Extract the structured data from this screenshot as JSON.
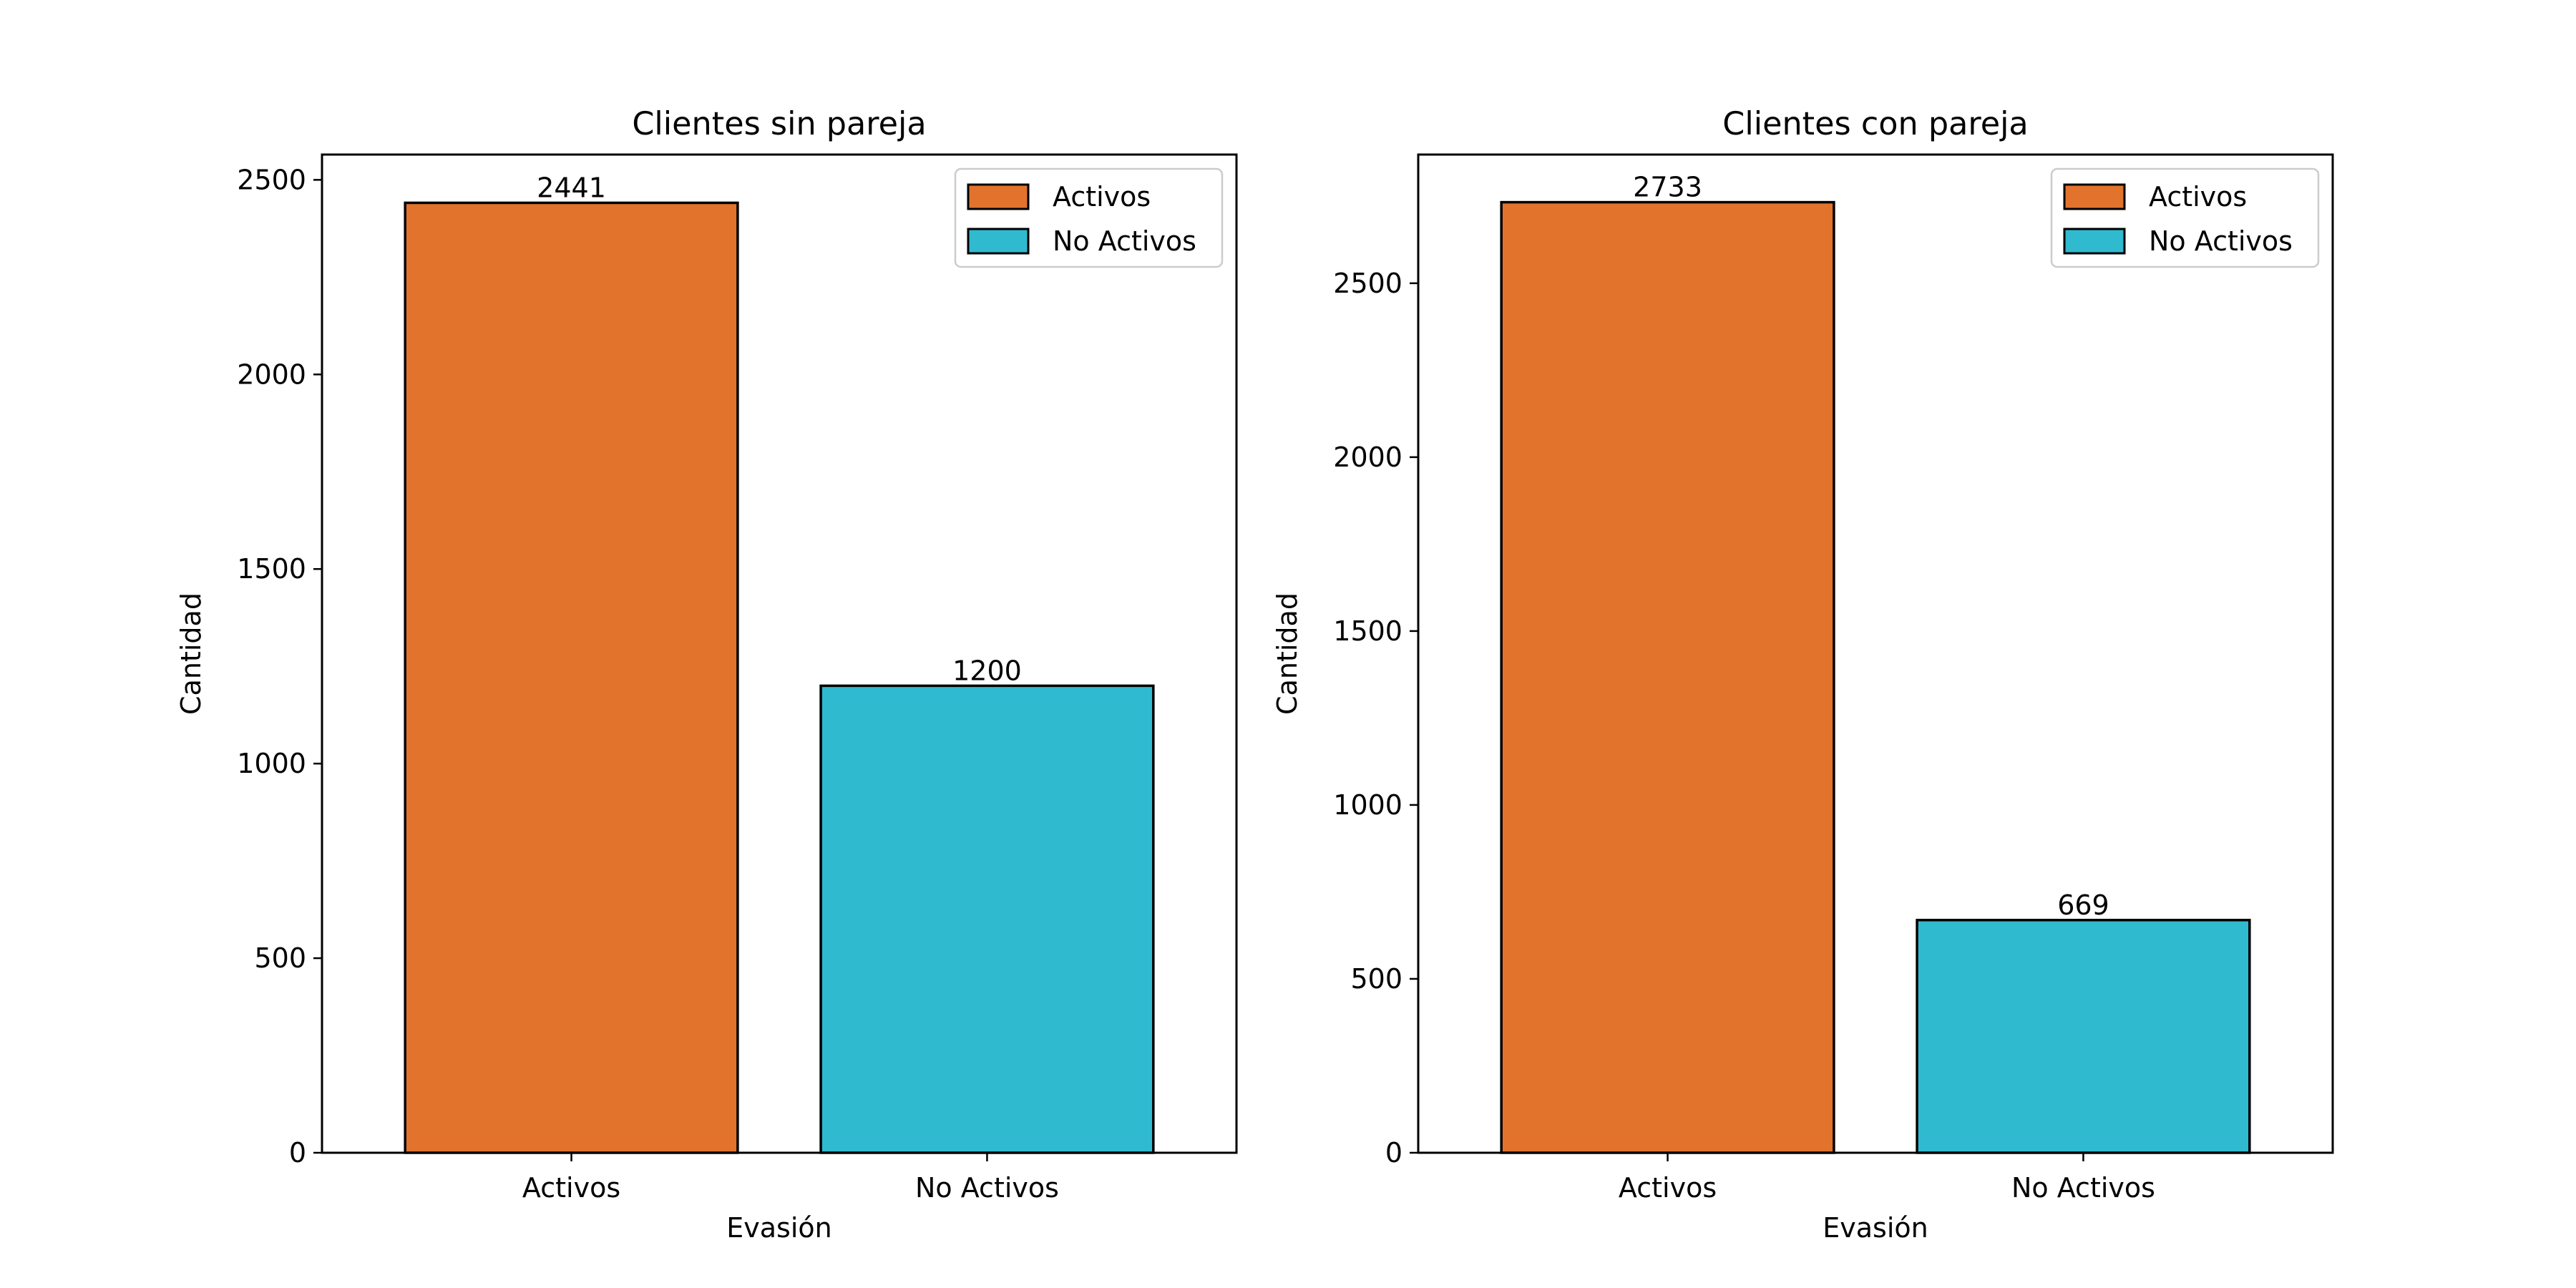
{
  "chart_data": [
    {
      "type": "bar",
      "title": "Clientes sin pareja",
      "xlabel": "Evasión",
      "ylabel": "Cantidad",
      "categories": [
        "Activos",
        "No Activos"
      ],
      "values": [
        2441,
        1200
      ],
      "data_labels": [
        "2441",
        "1200"
      ],
      "colors": [
        "#e1732d",
        "#2fbad0"
      ],
      "edge_color": "#000000",
      "ylim": [
        0,
        2565
      ],
      "yticks": [
        0,
        500,
        1000,
        1500,
        2000,
        2500
      ],
      "ytick_labels": [
        "0",
        "500",
        "1000",
        "1500",
        "2000",
        "2500"
      ],
      "grid": false,
      "legend": {
        "position": "top-right",
        "entries": [
          {
            "label": "Activos",
            "color": "#e1732d"
          },
          {
            "label": "No Activos",
            "color": "#2fbad0"
          }
        ]
      }
    },
    {
      "type": "bar",
      "title": "Clientes con pareja",
      "xlabel": "Evasión",
      "ylabel": "Cantidad",
      "categories": [
        "Activos",
        "No Activos"
      ],
      "values": [
        2733,
        669
      ],
      "data_labels": [
        "2733",
        "669"
      ],
      "colors": [
        "#e1732d",
        "#2fbad0"
      ],
      "edge_color": "#000000",
      "ylim": [
        0,
        2870
      ],
      "yticks": [
        0,
        500,
        1000,
        1500,
        2000,
        2500
      ],
      "ytick_labels": [
        "0",
        "500",
        "1000",
        "1500",
        "2000",
        "2500"
      ],
      "grid": false,
      "legend": {
        "position": "top-right",
        "entries": [
          {
            "label": "Activos",
            "color": "#e1732d"
          },
          {
            "label": "No Activos",
            "color": "#2fbad0"
          }
        ]
      }
    }
  ]
}
